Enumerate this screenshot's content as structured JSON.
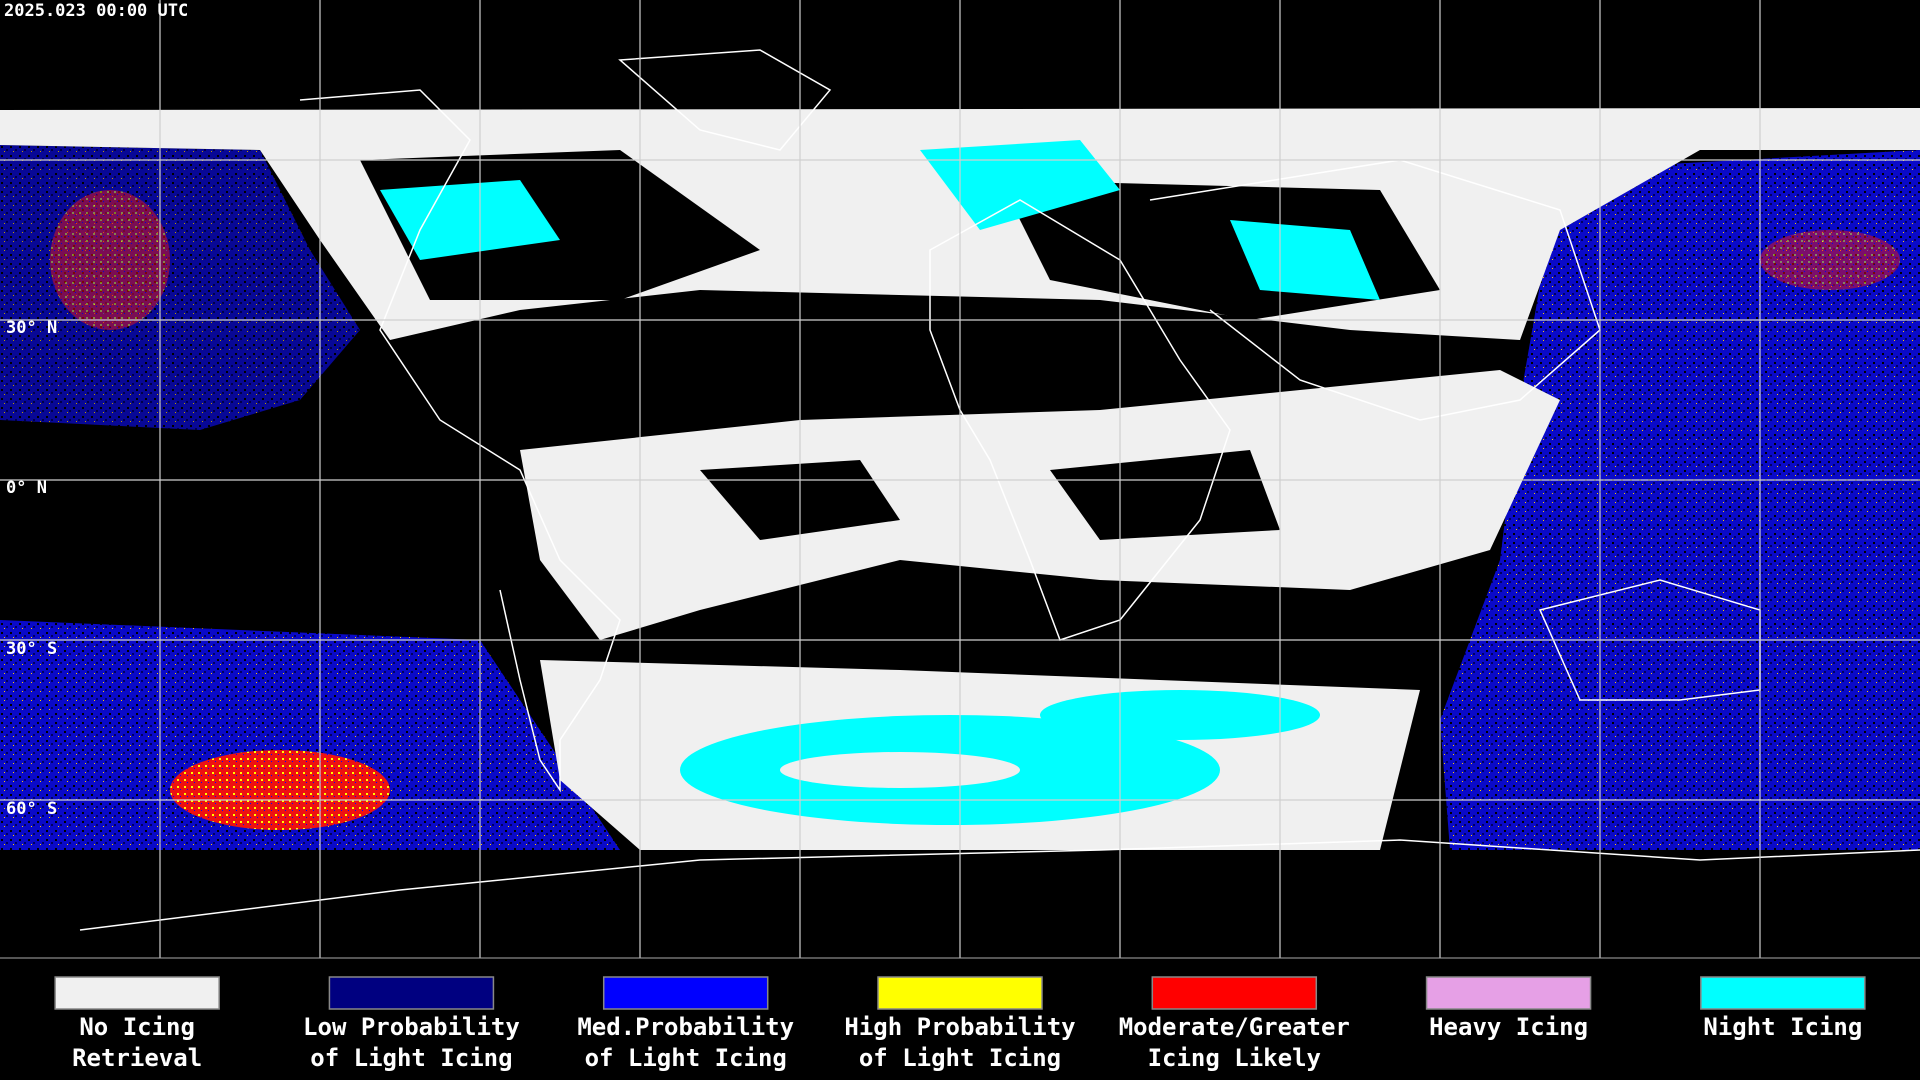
{
  "header": {
    "timestamp": "2025.023 00:00 UTC"
  },
  "latitude_labels": [
    "30° N",
    "0° N",
    "30° S",
    "60° S"
  ],
  "legend": [
    {
      "lines": [
        "No Icing",
        "Retrieval"
      ],
      "color": "#f0f0f0"
    },
    {
      "lines": [
        "Low Probability",
        "of Light Icing"
      ],
      "color": "#000080"
    },
    {
      "lines": [
        "Med.Probability",
        "of Light Icing"
      ],
      "color": "#0000ff"
    },
    {
      "lines": [
        "High Probability",
        "of Light Icing"
      ],
      "color": "#ffff00"
    },
    {
      "lines": [
        "Moderate/Greater",
        "Icing Likely"
      ],
      "color": "#ff0000"
    },
    {
      "lines": [
        "Heavy Icing"
      ],
      "color": "#e6a0e6"
    },
    {
      "lines": [
        "Night Icing"
      ],
      "color": "#00ffff"
    }
  ]
}
